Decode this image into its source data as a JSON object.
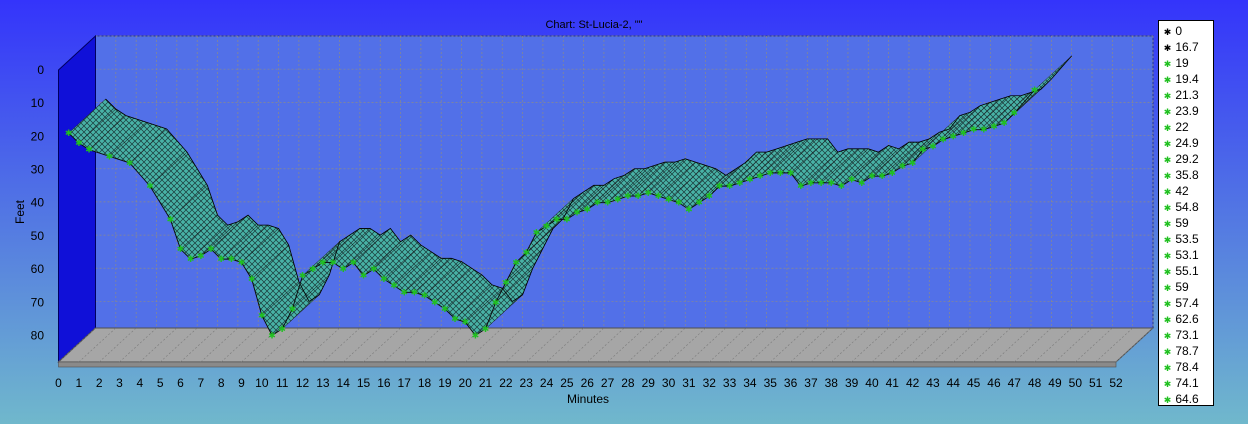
{
  "chart_data": {
    "type": "area",
    "title": "Chart: St-Lucia-2, \"\"",
    "xlabel": "Minutes",
    "ylabel": "Feet",
    "xlim": [
      0,
      52
    ],
    "ylim": [
      0,
      88
    ],
    "y_inverted": true,
    "x_ticks": [
      "0",
      "1",
      "2",
      "3",
      "4",
      "5",
      "6",
      "7",
      "8",
      "9",
      "10",
      "11",
      "12",
      "13",
      "14",
      "15",
      "16",
      "17",
      "18",
      "19",
      "20",
      "21",
      "22",
      "23",
      "24",
      "25",
      "26",
      "27",
      "28",
      "29",
      "30",
      "31",
      "32",
      "33",
      "34",
      "35",
      "36",
      "37",
      "38",
      "39",
      "40",
      "41",
      "42",
      "43",
      "44",
      "45",
      "46",
      "47",
      "48",
      "49",
      "50",
      "51",
      "52"
    ],
    "y_ticks": [
      "0",
      "10",
      "20",
      "30",
      "40",
      "50",
      "60",
      "70",
      "80"
    ],
    "grid": true,
    "legend_position": "right",
    "legend_entries": [
      "0",
      "16.7",
      "19",
      "19.4",
      "21.3",
      "23.9",
      "22",
      "24.9",
      "29.2",
      "35.8",
      "42",
      "54.8",
      "59",
      "53.5",
      "53.1",
      "55.1",
      "59",
      "57.4",
      "62.6",
      "73.1",
      "78.7",
      "78.4",
      "74.1",
      "64.6"
    ],
    "series": [
      {
        "x": [
          0.5,
          1,
          1.5,
          2.5,
          3.5,
          4.5,
          5.5,
          6,
          6.5,
          7,
          7.5,
          8,
          8.5,
          9,
          9.5,
          10,
          10.5,
          11,
          11.5,
          12,
          12.5,
          13,
          13.5,
          14,
          14.5,
          15,
          15.5,
          16,
          16.5,
          17,
          17.5,
          18,
          18.5,
          19,
          19.5,
          20,
          20.5,
          21,
          21.5,
          22,
          22.5,
          23,
          23.5,
          24,
          24.5,
          25,
          25.5,
          26,
          26.5,
          27,
          27.5,
          28,
          28.5,
          29,
          29.5,
          30,
          30.5,
          31,
          31.5,
          32,
          32.5,
          33,
          33.5,
          34,
          34.5,
          35,
          35.5,
          36,
          36.5,
          37,
          37.5,
          38,
          38.5,
          39,
          39.5,
          40,
          40.5,
          41,
          41.5,
          42,
          42.5,
          43,
          43.5,
          44,
          44.5,
          45,
          45.5,
          46,
          46.5,
          47,
          48
        ],
        "y": [
          19,
          22,
          24,
          26,
          28,
          35,
          45,
          54,
          57,
          56,
          54,
          57,
          57,
          58,
          63,
          74,
          80,
          78,
          72,
          62,
          60,
          58,
          58,
          60,
          58,
          62,
          60,
          63,
          65,
          67,
          67,
          68,
          70,
          72,
          75,
          76,
          80,
          78,
          70,
          64,
          58,
          55,
          49,
          47,
          45,
          45,
          43,
          42,
          40,
          40,
          39,
          38,
          38,
          37,
          38,
          39,
          40,
          42,
          40,
          38,
          35,
          35,
          34,
          33,
          32,
          31,
          31,
          31,
          35,
          34,
          34,
          34,
          35,
          33,
          34,
          32,
          32,
          31,
          29,
          28,
          24,
          23,
          21,
          20,
          19,
          18,
          18,
          17,
          16,
          13,
          6
        ]
      }
    ]
  },
  "colors": {
    "background_top": "#3434fb",
    "background_bottom": "#70b8cc",
    "plot_back_wall": "#5270e8",
    "left_wall": "#1010d8",
    "floor": "#a6a6a6",
    "ribbon_fill": "#48b2a6",
    "marker": "#20c020",
    "grid": "#8a8a8a"
  }
}
